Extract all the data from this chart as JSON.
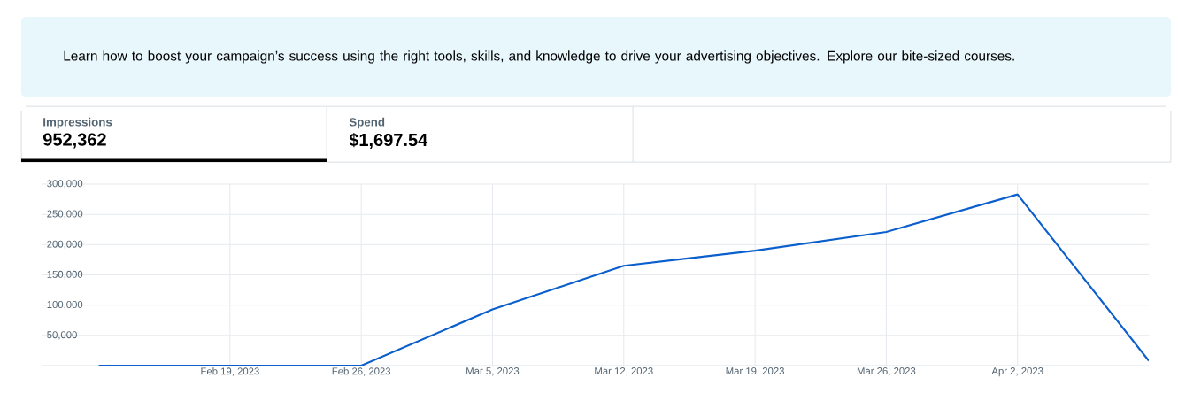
{
  "chart_data": {
    "type": "line",
    "annotations": [
      "Learn how to boost your campaign’s success using the right tools, skills, and knowledge to drive your advertising objectives. Explore our bite-sized courses.",
      "Impressions",
      "952,362",
      "Spend",
      "$1,697.54"
    ],
    "x": [
      "2023-02-12",
      "2023-02-19",
      "2023-02-26",
      "2023-03-05",
      "2023-03-12",
      "2023-03-19",
      "2023-03-26",
      "2023-04-02",
      "2023-04-09"
    ],
    "series": [
      {
        "color": "#0b5fcc",
        "values": [
          0,
          0,
          0,
          93000,
          165000,
          190000,
          221000,
          283000,
          8000
        ]
      }
    ],
    "xlim": [
      "2023-02-09",
      "2023-04-09"
    ],
    "xticks": [
      {
        "value": "2023-02-19",
        "label": "Feb 19, 2023"
      },
      {
        "value": "2023-02-26",
        "label": "Feb 26, 2023"
      },
      {
        "value": "2023-03-05",
        "label": "Mar 5, 2023"
      },
      {
        "value": "2023-03-12",
        "label": "Mar 12, 2023"
      },
      {
        "value": "2023-03-19",
        "label": "Mar 19, 2023"
      },
      {
        "value": "2023-03-26",
        "label": "Mar 26, 2023"
      },
      {
        "value": "2023-04-02",
        "label": "Apr 2, 2023"
      }
    ],
    "ylim": [
      0,
      300000
    ],
    "yticks": [
      {
        "value": 50000,
        "label": "50,000"
      },
      {
        "value": 100000,
        "label": "100,000"
      },
      {
        "value": 150000,
        "label": "150,000"
      },
      {
        "value": 200000,
        "label": "200,000"
      },
      {
        "value": 250000,
        "label": "250,000"
      },
      {
        "value": 300000,
        "label": "300,000"
      }
    ],
    "grid": true
  }
}
